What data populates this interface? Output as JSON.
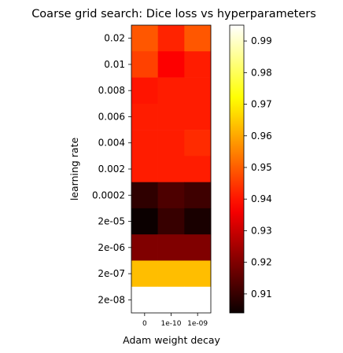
{
  "chart_data": {
    "type": "heatmap",
    "title": "Coarse grid search: Dice loss vs hyperparameters",
    "xlabel": "Adam weight decay",
    "ylabel": "learning rate",
    "x_categories": [
      "0",
      "1e-10",
      "1e-09"
    ],
    "y_categories": [
      "0.02",
      "0.01",
      "0.008",
      "0.006",
      "0.004",
      "0.002",
      "0.0002",
      "2e-05",
      "2e-06",
      "2e-07",
      "2e-08"
    ],
    "values": [
      [
        0.949,
        0.942,
        0.949
      ],
      [
        0.946,
        0.937,
        0.941
      ],
      [
        0.94,
        0.941,
        0.941
      ],
      [
        0.941,
        0.941,
        0.941
      ],
      [
        0.941,
        0.941,
        0.943
      ],
      [
        0.941,
        0.941,
        0.941
      ],
      [
        0.909,
        0.913,
        0.911
      ],
      [
        0.904,
        0.91,
        0.906
      ],
      [
        0.92,
        0.92,
        0.92
      ],
      [
        0.963,
        0.963,
        0.963
      ],
      [
        0.995,
        0.995,
        0.995
      ]
    ],
    "colormap": "hot",
    "colorbar": {
      "range": [
        0.904,
        0.995
      ],
      "ticks": [
        "0.91",
        "0.92",
        "0.93",
        "0.94",
        "0.95",
        "0.96",
        "0.97",
        "0.98",
        "0.99"
      ]
    }
  }
}
